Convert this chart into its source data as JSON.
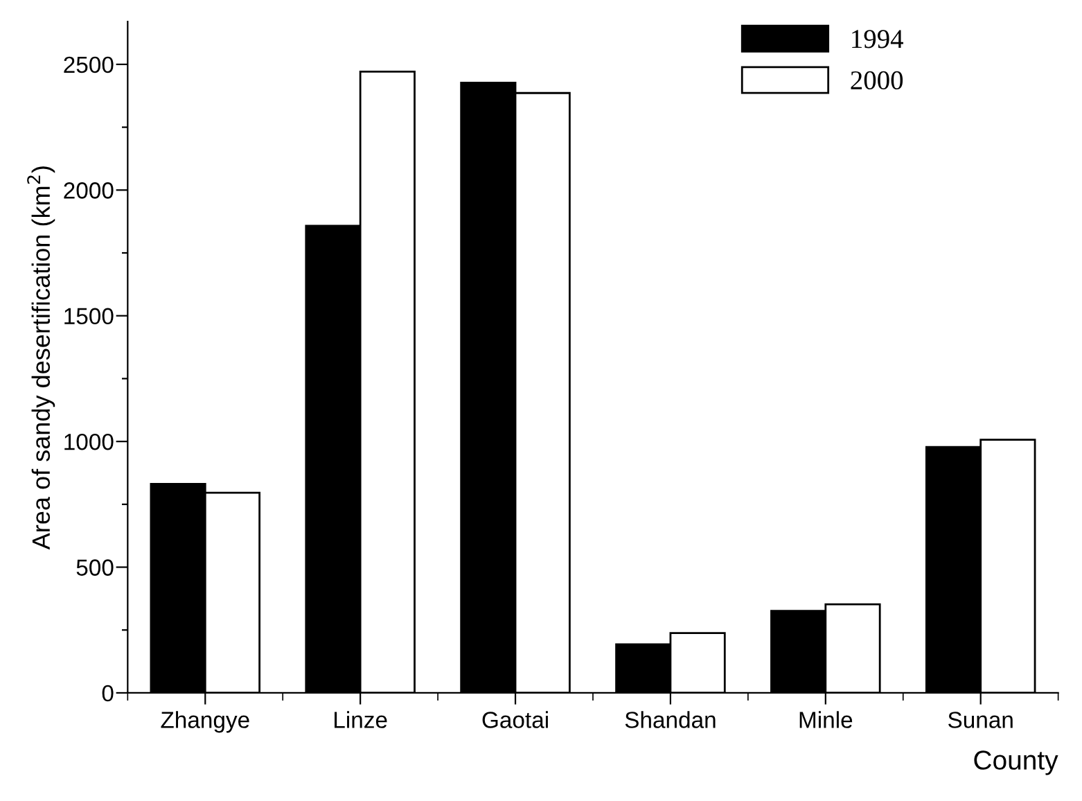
{
  "chart_data": {
    "type": "bar",
    "xlabel": "County",
    "ylabel": "Area of sandy desertification (km$^{2}$)",
    "categories": [
      "Zhangye",
      "Linze",
      "Gaotai",
      "Shandan",
      "Minle",
      "Sunan"
    ],
    "series": [
      {
        "name": "1994",
        "color": "#000000",
        "values": [
          831,
          1858,
          2427,
          193,
          326,
          978
        ]
      },
      {
        "name": "2000",
        "color": "#ffffff",
        "values": [
          796,
          2471,
          2386,
          238,
          352,
          1007
        ]
      }
    ],
    "ylim": [
      0,
      2670
    ],
    "yticks": [
      0,
      {
        "value": 250,
        "label": null
      },
      500,
      {
        "value": 750,
        "label": null
      },
      1000,
      {
        "value": 1250,
        "label": null
      },
      1500,
      {
        "value": 1750,
        "label": null
      },
      2000,
      {
        "value": 2250,
        "label": null
      },
      2500
    ],
    "legend": "top right",
    "grid": false
  }
}
